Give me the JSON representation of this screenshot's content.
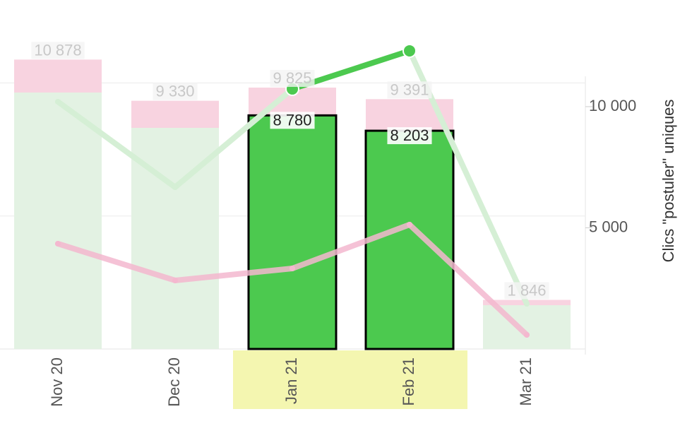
{
  "chart_data": {
    "type": "bar",
    "categories": [
      "Nov 20",
      "Dec 20",
      "Jan 21",
      "Feb 21",
      "Mar 21"
    ],
    "highlighted": [
      2,
      3
    ],
    "series": [
      {
        "color": "#f8d3e0",
        "values": [
          10878,
          9330,
          9825,
          9391,
          1846
        ],
        "value_labels": [
          "10 878",
          "9 330",
          "9 825",
          "9 391",
          "1 846"
        ]
      },
      {
        "color": "#4cc94f",
        "values": [
          9639,
          8311,
          8780,
          8203,
          1646
        ],
        "value_labels": [
          null,
          null,
          "8 780",
          "8 203",
          null
        ]
      },
      {
        "type": "line",
        "axis": "y2",
        "color": "#4cc94f",
        "values": [
          10204,
          6676,
          10729,
          12303,
          1866
        ]
      },
      {
        "type": "line",
        "axis": "y2",
        "color": "#f4b8cf",
        "values": [
          4344,
          2828,
          3324,
          5131,
          583
        ]
      }
    ],
    "ylim": [
      0,
      13117
    ],
    "gridlines": [
      5000,
      10000
    ],
    "y2lim": [
      0,
      14400
    ],
    "y2ticks": [
      {
        "value": 5000,
        "label": "5 000"
      },
      {
        "value": 10000,
        "label": "10 000"
      }
    ],
    "y2label": "Clics \"postuler\" uniques"
  }
}
